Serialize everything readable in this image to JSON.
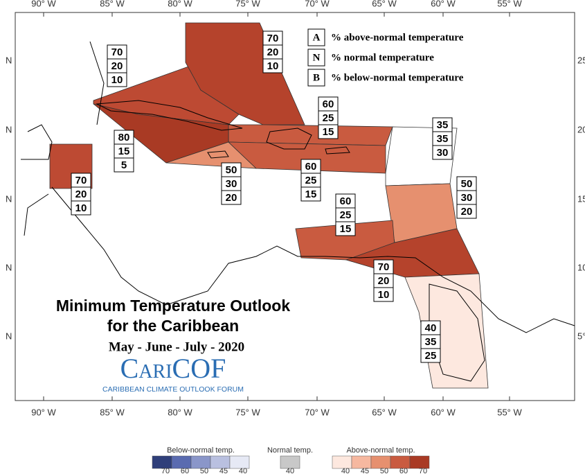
{
  "map": {
    "lon_labels": [
      "90° W",
      "85° W",
      "80° W",
      "75° W",
      "70° W",
      "65° W",
      "60° W",
      "55° W"
    ],
    "lat_labels_left": [
      "N",
      "N",
      "N",
      "N",
      "N"
    ],
    "lat_labels_right": [
      "25°",
      "20°",
      "15°",
      "10°",
      "5°"
    ]
  },
  "legend": [
    {
      "key": "A",
      "text": "% above-normal temperature"
    },
    {
      "key": "N",
      "text": "% normal temperature"
    },
    {
      "key": "B",
      "text": "% below-normal temperature"
    }
  ],
  "title": [
    "Minimum Temperature Outlook",
    "for the Caribbean"
  ],
  "period": "May - June - July - 2020",
  "logo": {
    "name": "CariCOF",
    "tagline": "CARIBBEAN CLIMATE OUTLOOK FORUM"
  },
  "regions": [
    {
      "color": "#bd4a33",
      "probabilities": [
        70,
        20,
        10
      ]
    },
    {
      "color": "#b5432c",
      "probabilities": [
        70,
        20,
        10
      ]
    },
    {
      "color": "#c95b40",
      "probabilities": [
        60,
        25,
        15
      ]
    },
    {
      "color": "#a93a24",
      "probabilities": [
        80,
        15,
        5
      ]
    },
    {
      "color": "#bd4a33",
      "probabilities": [
        70,
        20,
        10
      ]
    },
    {
      "color": "#e6906f",
      "probabilities": [
        50,
        30,
        20
      ]
    },
    {
      "color": "#c95b40",
      "probabilities": [
        60,
        25,
        15
      ]
    },
    {
      "color": "#ffffff",
      "probabilities": [
        35,
        35,
        30
      ]
    },
    {
      "color": "#e6906f",
      "probabilities": [
        50,
        30,
        20
      ]
    },
    {
      "color": "#c95b40",
      "probabilities": [
        60,
        25,
        15
      ]
    },
    {
      "color": "#b5432c",
      "probabilities": [
        70,
        20,
        10
      ]
    },
    {
      "color": "#fde8df",
      "probabilities": [
        40,
        35,
        25
      ]
    }
  ],
  "color_scale": [
    {
      "label": "Below-normal temp.",
      "colors": [
        "#2f3f7a",
        "#5a6bb0",
        "#8a96c9",
        "#b9c0e0",
        "#e6e9f5"
      ],
      "ticks": [
        70,
        60,
        50,
        45,
        40
      ]
    },
    {
      "label": "Normal temp.",
      "colors": [
        "#c8c8c8"
      ],
      "ticks": [
        40
      ]
    },
    {
      "label": "Above-normal temp.",
      "colors": [
        "#fde8df",
        "#f6b8a0",
        "#e6906f",
        "#c95b40",
        "#a93a24"
      ],
      "ticks": [
        40,
        45,
        50,
        60,
        70
      ]
    }
  ]
}
